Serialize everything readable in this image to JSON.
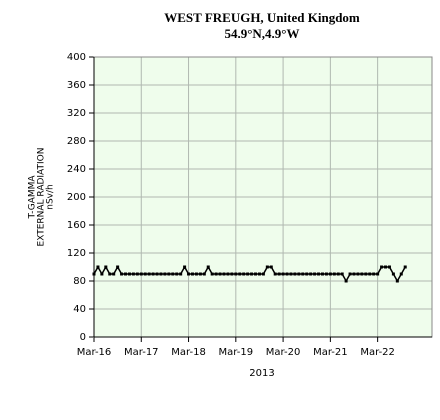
{
  "chart_data": {
    "type": "line",
    "title": "WEST FREUGH, United Kingdom",
    "subtitle": "54.9°N,4.9°W",
    "y_label": [
      "T-GAMMA",
      "EXTERNAL RADIATION",
      "nSv/h"
    ],
    "x_label": "2013",
    "x": [
      0,
      2,
      4,
      6,
      8,
      10,
      12,
      14,
      16,
      18,
      20,
      22,
      24,
      26,
      28,
      30,
      32,
      34,
      36,
      38,
      40,
      42,
      44,
      46,
      48,
      50,
      52,
      54,
      56,
      58,
      60,
      62,
      64,
      66,
      68,
      70,
      72,
      74,
      76,
      78,
      80,
      82,
      84,
      86,
      88,
      90,
      92,
      94,
      96,
      98,
      100,
      102,
      104,
      106,
      108,
      110,
      112,
      114,
      116,
      118,
      120,
      122,
      124,
      126,
      128,
      130,
      132,
      134,
      136,
      138,
      140,
      142,
      144,
      146,
      148,
      150,
      152,
      154,
      156,
      158
    ],
    "series": [
      {
        "color": "#000000",
        "values": [
          90,
          100,
          90,
          100,
          90,
          90,
          100,
          90,
          90,
          90,
          90,
          90,
          90,
          90,
          90,
          90,
          90,
          90,
          90,
          90,
          90,
          90,
          90,
          100,
          90,
          90,
          90,
          90,
          90,
          100,
          90,
          90,
          90,
          90,
          90,
          90,
          90,
          90,
          90,
          90,
          90,
          90,
          90,
          90,
          100,
          100,
          90,
          90,
          90,
          90,
          90,
          90,
          90,
          90,
          90,
          90,
          90,
          90,
          90,
          90,
          90,
          90,
          90,
          90,
          80,
          90,
          90,
          90,
          90,
          90,
          90,
          90,
          90,
          100,
          100,
          100,
          90,
          80,
          90,
          100
        ]
      }
    ],
    "xlim": [
      0,
      171.6
    ],
    "xticks": [
      {
        "value": 0,
        "label": "Mar-16"
      },
      {
        "value": 24,
        "label": "Mar-17"
      },
      {
        "value": 48,
        "label": "Mar-18"
      },
      {
        "value": 72,
        "label": "Mar-19"
      },
      {
        "value": 96,
        "label": "Mar-20"
      },
      {
        "value": 120,
        "label": "Mar-21"
      },
      {
        "value": 144,
        "label": "Mar-22"
      }
    ],
    "ylim": [
      0,
      400
    ],
    "yticks": [
      0,
      40,
      80,
      120,
      160,
      200,
      240,
      280,
      320,
      360,
      400
    ],
    "grid": true,
    "plot_background": "#effdec"
  }
}
